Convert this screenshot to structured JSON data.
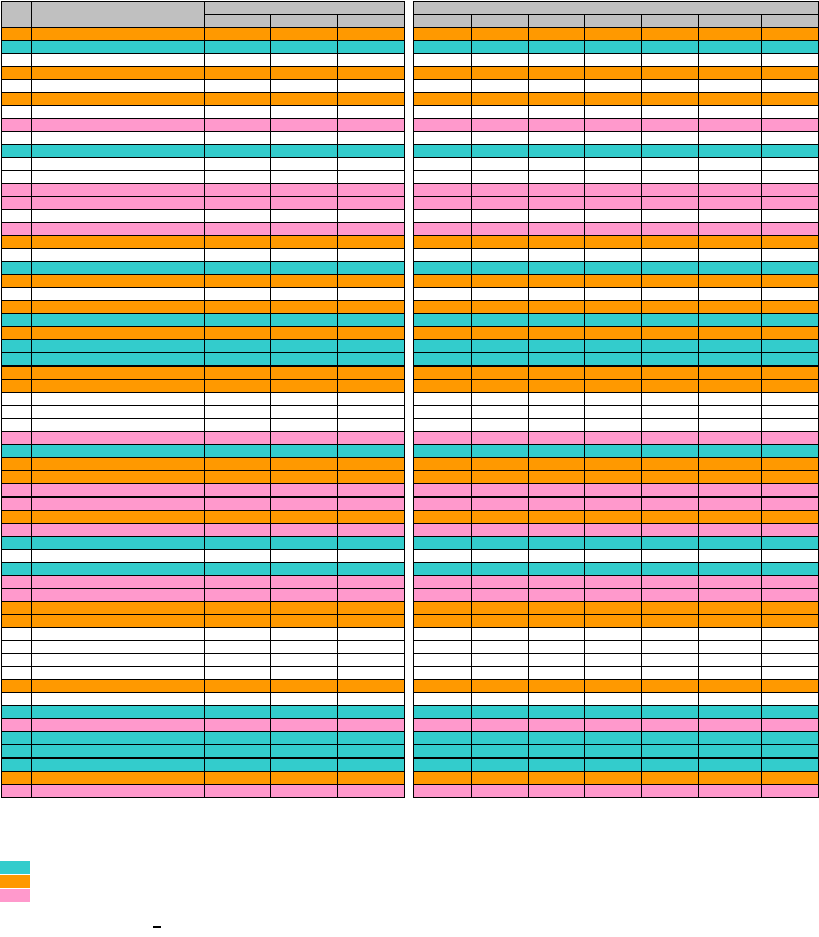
{
  "colors": {
    "header": "#c0c0c0",
    "teal": "#33cccc",
    "orange": "#ff9900",
    "pink": "#ff99cc",
    "white": "#ffffff",
    "border": "#000000"
  },
  "row_colors": [
    "o",
    "t",
    "w",
    "o",
    "w",
    "o",
    "w",
    "p",
    "w",
    "t",
    "w",
    "w",
    "p",
    "p",
    "w",
    "p",
    "o",
    "w",
    "t",
    "o",
    "w",
    "o",
    "t",
    "o",
    "t",
    "t",
    "o",
    "o",
    "w",
    "w",
    "w",
    "p",
    "t",
    "o",
    "o",
    "p",
    "p",
    "o",
    "p",
    "t",
    "w",
    "t",
    "p",
    "p",
    "o",
    "o",
    "w",
    "w",
    "w",
    "w",
    "o",
    "w",
    "t",
    "p",
    "t",
    "t",
    "t",
    "o",
    "p"
  ],
  "thick_rows": [
    26,
    36,
    56
  ],
  "legend": [
    {
      "color": "#33cccc",
      "label": ""
    },
    {
      "color": "#ff9900",
      "label": ""
    },
    {
      "color": "#ff99cc",
      "label": ""
    }
  ]
}
